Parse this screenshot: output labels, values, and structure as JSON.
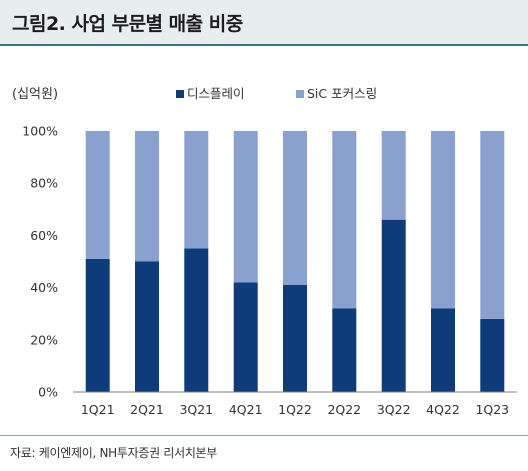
{
  "header": {
    "title": "그림2.  사업 부문별 매출 비중"
  },
  "footer": {
    "source": "자료: 케이엔제이, NH투자증권 리서치본부"
  },
  "colors": {
    "display": "#0e3b7a",
    "sic": "#8aa0cf"
  },
  "chart_data": {
    "type": "bar",
    "stacked": true,
    "unit_label": "(십억원)",
    "categories": [
      "1Q21",
      "2Q21",
      "3Q21",
      "4Q21",
      "1Q22",
      "2Q22",
      "3Q22",
      "4Q22",
      "1Q23"
    ],
    "series": [
      {
        "name": "디스플레이",
        "values": [
          51,
          50,
          55,
          42,
          41,
          32,
          66,
          32,
          28
        ]
      },
      {
        "name": "SiC 포커스링",
        "values": [
          49,
          50,
          45,
          58,
          59,
          68,
          34,
          68,
          72
        ]
      }
    ],
    "ylim": [
      0,
      100
    ],
    "yticks": [
      "0%",
      "20%",
      "40%",
      "60%",
      "80%",
      "100%"
    ],
    "ytick_values": [
      0,
      20,
      40,
      60,
      80,
      100
    ],
    "legend_position": "top",
    "grid": false
  }
}
